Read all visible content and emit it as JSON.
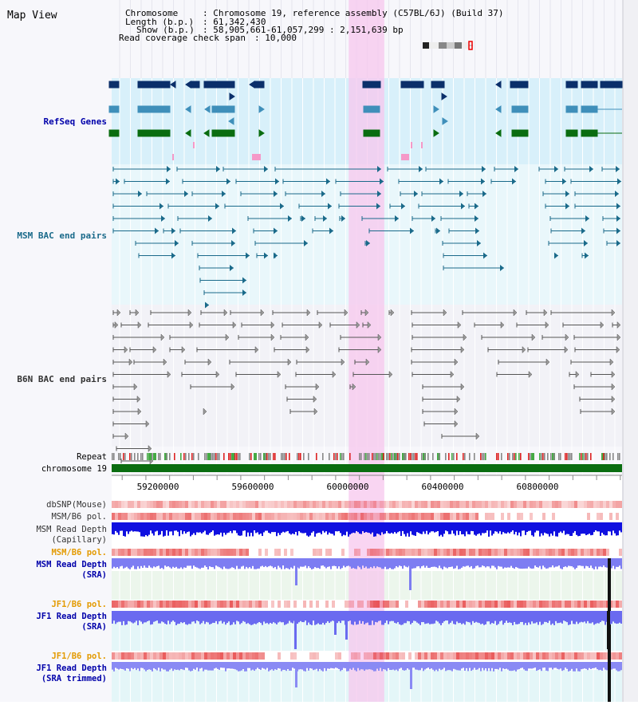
{
  "app": {
    "title": "Map View"
  },
  "info": {
    "chromosome_key": "Chromosome",
    "chromosome_value": ": Chromosome 19, reference assembly (C57BL/6J) (Build 37)",
    "length_key": "Length (b.p.)",
    "length_value": ": 61,342,430",
    "show_key": "Show (b.p.)",
    "show_value": ": 58,905,661-61,057,299 : 2,151,639 bp",
    "span_key": "Read coverage check span",
    "span_value": ": 10,000"
  },
  "tracks": {
    "refseq": "RefSeq Genes",
    "msm_bac": "MSM BAC end pairs",
    "b6n_bac": "B6N BAC end pairs",
    "repeat": "Repeat",
    "chromosome": "chromosome 19",
    "dbsnp": "dbSNP(Mouse)",
    "msm_b6_pol_1": "MSM/B6 pol.",
    "msm_depth_cap_1": "MSM Read Depth",
    "msm_depth_cap_2": "(Capillary)",
    "msm_b6_pol_2": "MSM/B6 pol.",
    "msm_depth_sra_1": "MSM Read Depth",
    "msm_depth_sra_2": "(SRA)",
    "jf1_b6_pol_1": "JF1/B6 pol.",
    "jf1_depth_sra_1": "JF1 Read Depth",
    "jf1_depth_sra_2": "(SRA)",
    "jf1_b6_pol_2": "JF1/B6 pol.",
    "jf1_depth_trim_1": "JF1 Read Depth",
    "jf1_depth_trim_2": "(SRA trimmed)"
  },
  "axis": {
    "range": [
      58905661,
      61057299
    ],
    "ticks": [
      {
        "value": 59200000,
        "label": "59200000"
      },
      {
        "value": 59600000,
        "label": "59600000"
      },
      {
        "value": 60000000,
        "label": "60000000"
      },
      {
        "value": 60400000,
        "label": "60400000"
      },
      {
        "value": 60800000,
        "label": "60800000"
      }
    ]
  },
  "highlight": {
    "start": 59905000,
    "end": 60055000
  },
  "colors": {
    "label_black": "#000000",
    "label_blue": "#0000aa",
    "label_teal": "#1a6a8a",
    "label_gray": "#333333",
    "label_orange": "#e39a00",
    "refseq_bg": "#d8f0fa",
    "msm_bg": "#e9f7fb",
    "b6n_bg": "#f2f2f7",
    "highlight": "#f7c7ee",
    "gene_dark": "#0b2f6a",
    "gene_mid": "#3f8fba",
    "gene_green": "#0a6d10",
    "msm_pair": "#1a6a8a",
    "b6n_pair": "#555555",
    "chromosome": "#0a6d10",
    "depth_dark": "#1010e0",
    "depth_light": "#7d7df2",
    "snp": "#e44444"
  }
}
